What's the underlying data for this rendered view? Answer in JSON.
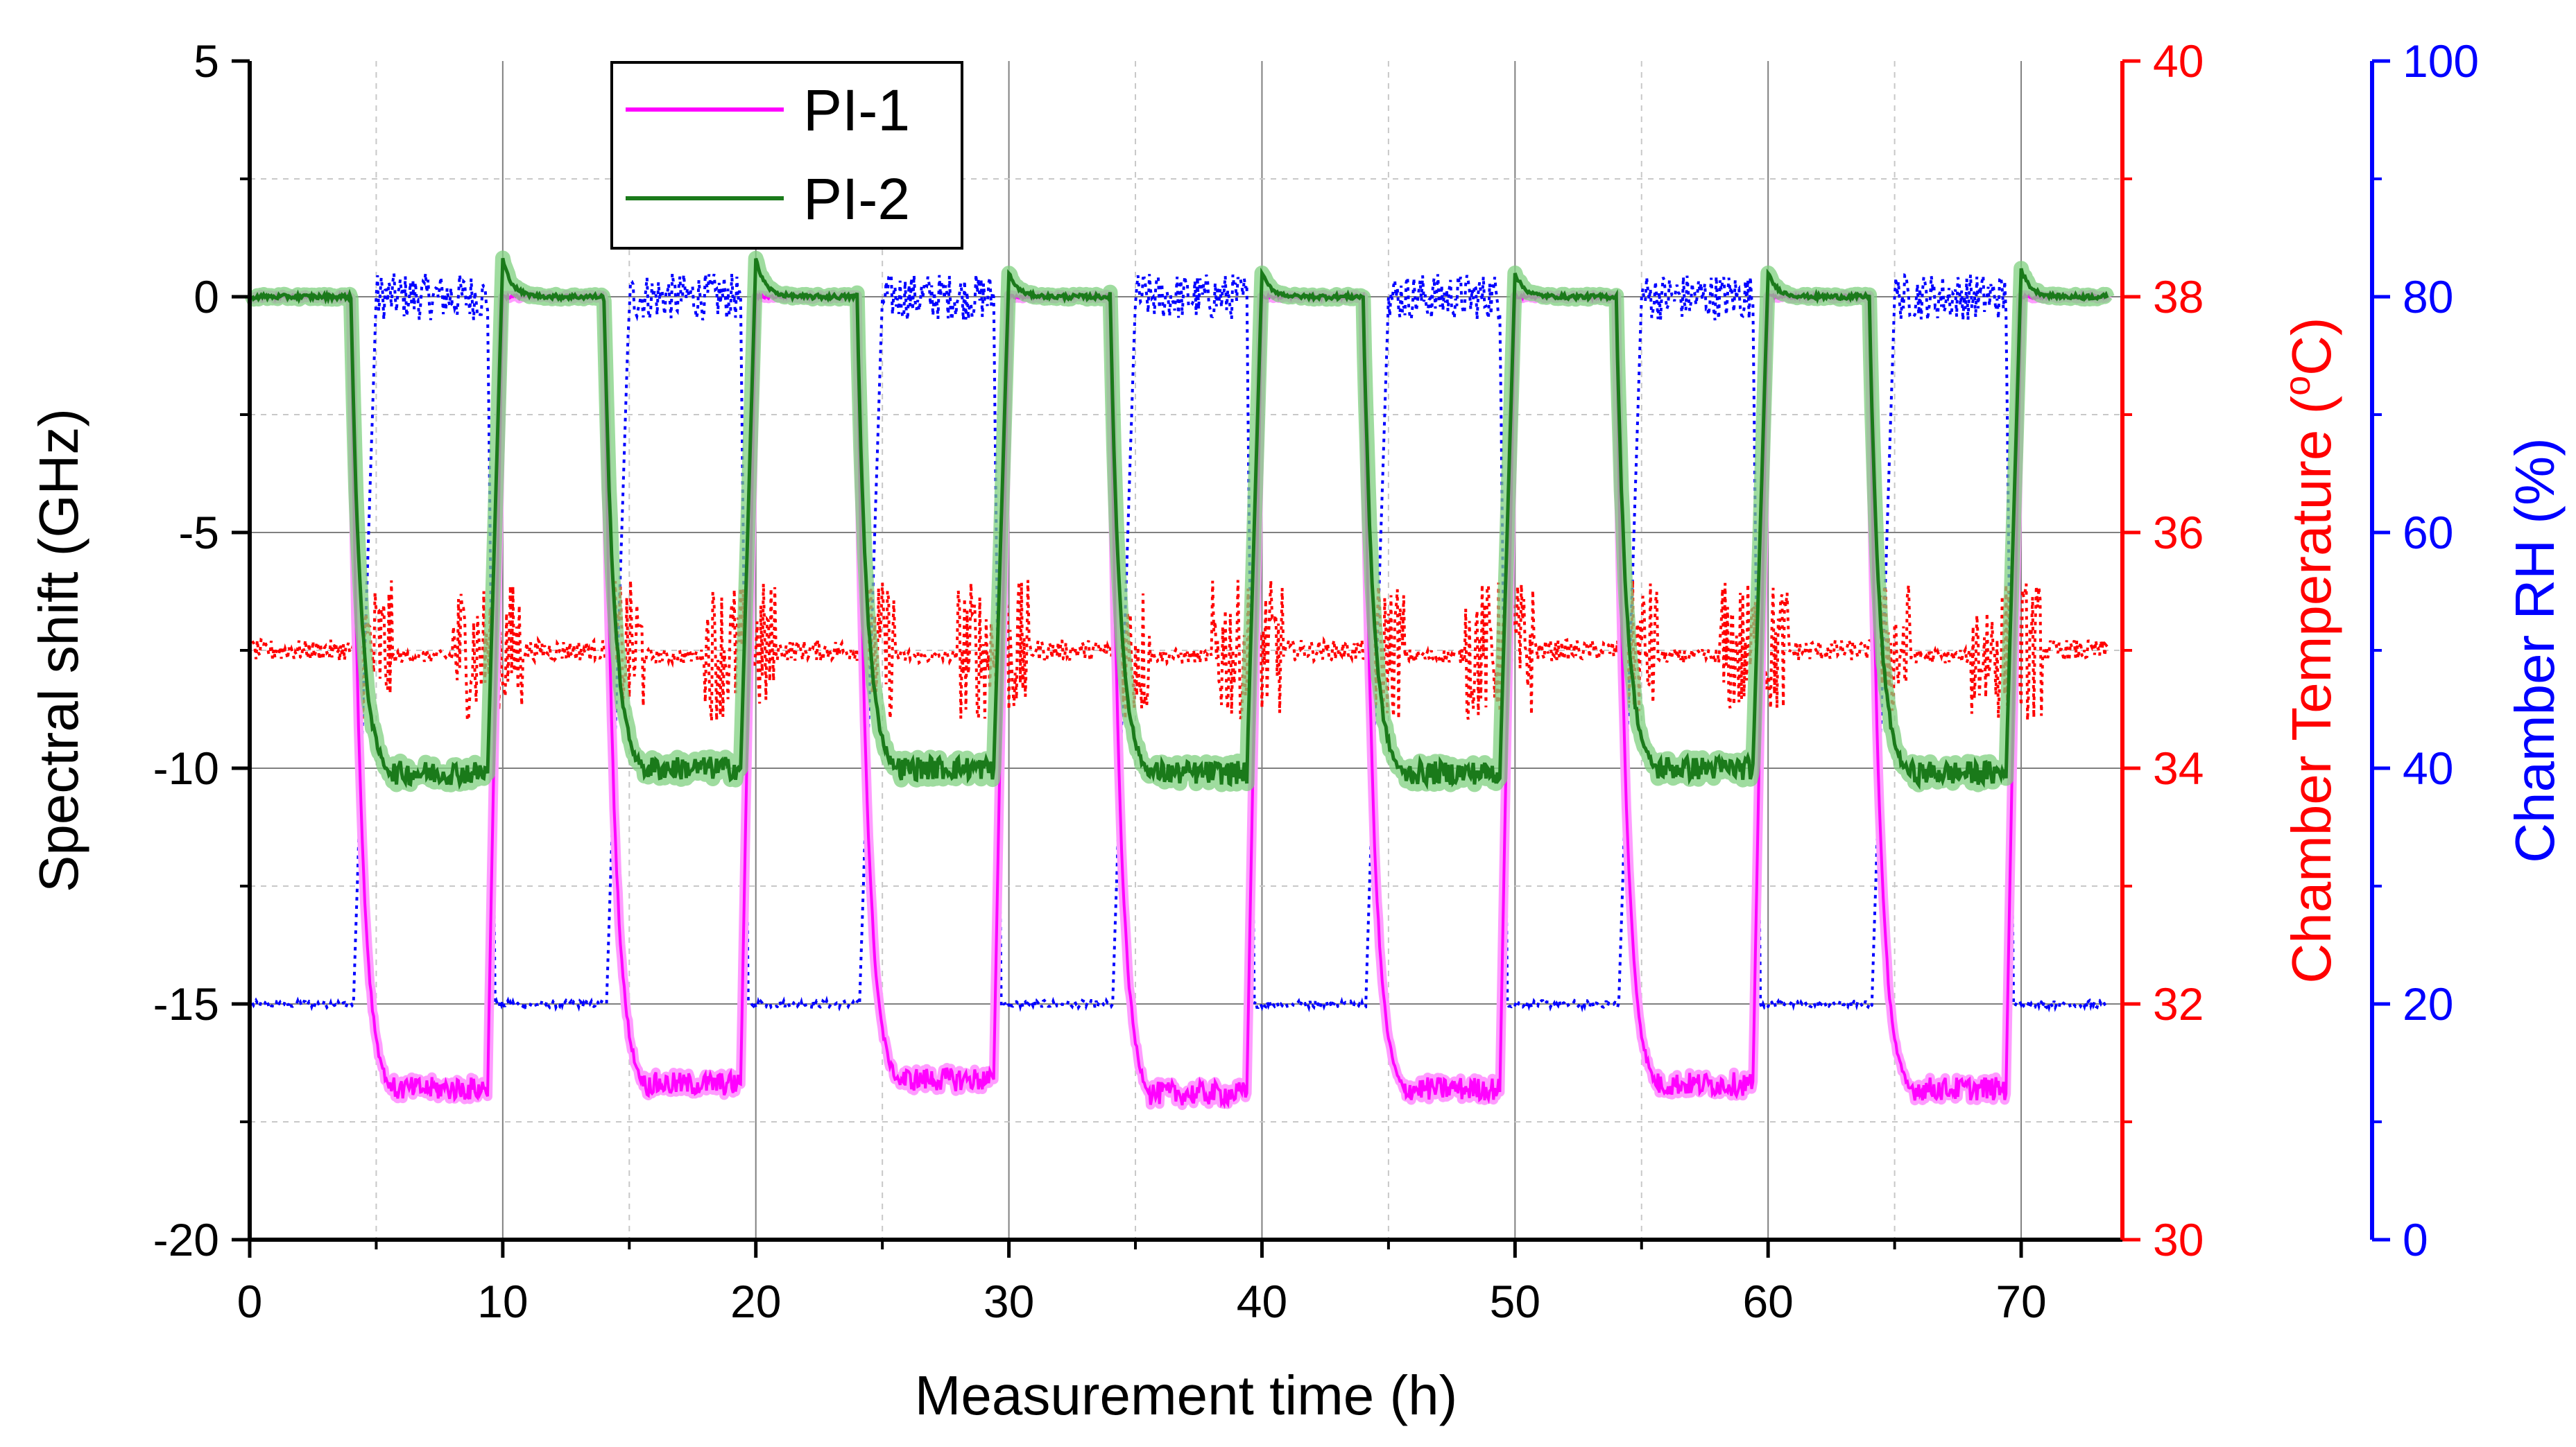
{
  "chart_data": {
    "type": "line",
    "xlabel": "Measurement time (h)",
    "ylabel": "Spectral shift (GHz)",
    "y2label_prefix": "Chamber Temperature (",
    "y2label_sup": "o",
    "y2label_suffix": "C)",
    "y3label": "Chamber RH (%)",
    "xlim": [
      0,
      74
    ],
    "ylim": [
      -20,
      5
    ],
    "y2lim": [
      30,
      40
    ],
    "y3lim": [
      0,
      100
    ],
    "x_ticks": [
      0,
      10,
      20,
      30,
      40,
      50,
      60,
      70
    ],
    "x_tick_labels": [
      "0",
      "10",
      "20",
      "30",
      "40",
      "50",
      "60",
      "70"
    ],
    "y_ticks": [
      5,
      0,
      -5,
      -10,
      -15,
      -20
    ],
    "y_tick_labels": [
      "5",
      "0",
      "-5",
      "-10",
      "-15",
      "-20"
    ],
    "y2_ticks": [
      40,
      38,
      36,
      34,
      32,
      30
    ],
    "y2_tick_labels": [
      "40",
      "38",
      "36",
      "34",
      "32",
      "30"
    ],
    "y3_ticks": [
      100,
      80,
      60,
      40,
      20,
      0
    ],
    "y3_tick_labels": [
      "100",
      "80",
      "60",
      "40",
      "20",
      "0"
    ],
    "grid": true,
    "legend_position": "top-left",
    "cycle": {
      "high_rh_starts": [
        5,
        15,
        25,
        35,
        45,
        55,
        65
      ],
      "high_rh_ends": [
        9.4,
        19.4,
        29.4,
        39.4,
        49.4,
        59.4,
        69.4
      ]
    },
    "series": [
      {
        "name": "PI-1",
        "axis": "left",
        "color": "#ff00ff",
        "style": "solid",
        "baseline": 0,
        "plateau_values": [
          -16.8,
          -16.7,
          -16.6,
          -16.9,
          -16.8,
          -16.7,
          -16.8
        ]
      },
      {
        "name": "PI-2",
        "axis": "left",
        "color": "#1a7a1a",
        "band_color": "#7fd07f",
        "style": "solid",
        "baseline": 0,
        "plateau_values": [
          -10.1,
          -10.0,
          -10.0,
          -10.1,
          -10.1,
          -10.0,
          -10.1
        ],
        "overshoot_peaks": [
          0.8,
          0.8,
          0.5,
          0.5,
          0.5,
          0.5,
          0.6
        ]
      },
      {
        "name": "Chamber Temperature",
        "axis": "right-1",
        "color": "#ff0000",
        "style": "dotted",
        "setpoint": 35,
        "wet_phase_value": 34.95
      },
      {
        "name": "Chamber RH",
        "axis": "right-2",
        "color": "#0000ff",
        "style": "dotted",
        "low_value": 20,
        "high_value": 80
      }
    ]
  }
}
